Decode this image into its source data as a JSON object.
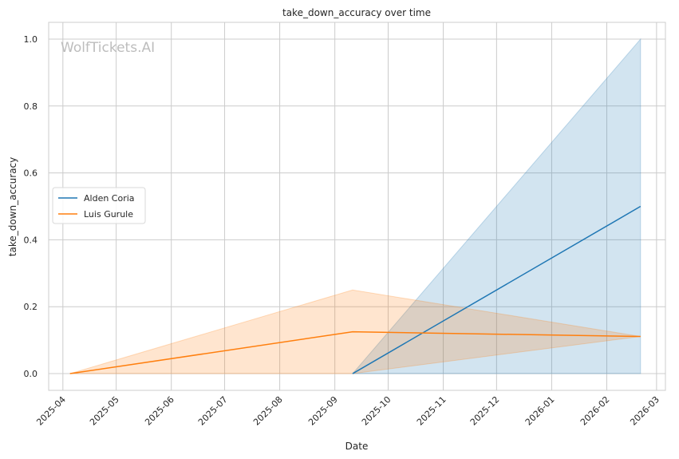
{
  "watermark": "WolfTickets.AI",
  "chart_data": {
    "type": "line",
    "title": "take_down_accuracy over time",
    "xlabel": "Date",
    "ylabel": "take_down_accuracy",
    "xlim": [
      "2025-03-24",
      "2026-03-06"
    ],
    "ylim": [
      -0.05,
      1.05
    ],
    "x_ticks": [
      "2025-04",
      "2025-05",
      "2025-06",
      "2025-07",
      "2025-08",
      "2025-09",
      "2025-10",
      "2025-11",
      "2025-12",
      "2026-01",
      "2026-02",
      "2026-03"
    ],
    "y_ticks": [
      0.0,
      0.2,
      0.4,
      0.6,
      0.8,
      1.0
    ],
    "y_tick_labels": [
      "0.0",
      "0.2",
      "0.4",
      "0.6",
      "0.8",
      "1.0"
    ],
    "grid": true,
    "legend_position": "center-left",
    "series": [
      {
        "name": "Alden Coria",
        "color": "#1f77b4",
        "x": [
          "2025-09-11",
          "2026-02-20"
        ],
        "y": [
          0.0,
          0.5
        ],
        "band_lower": [
          0.0,
          0.0
        ],
        "band_upper": [
          0.0,
          1.0
        ]
      },
      {
        "name": "Luis Gurule",
        "color": "#ff7f0e",
        "x": [
          "2025-04-05",
          "2025-09-11",
          "2026-02-20"
        ],
        "y": [
          0.0,
          0.125,
          0.111
        ],
        "band_lower": [
          0.0,
          0.0,
          0.111
        ],
        "band_upper": [
          0.0,
          0.25,
          0.111
        ]
      }
    ]
  }
}
